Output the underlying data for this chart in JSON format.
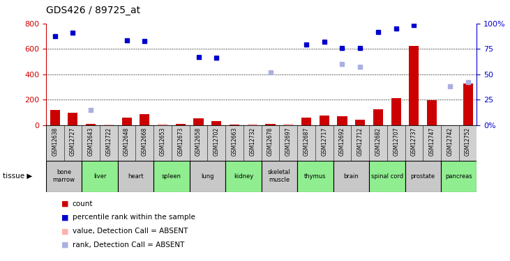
{
  "title": "GDS426 / 89725_at",
  "samples": [
    "GSM12638",
    "GSM12727",
    "GSM12643",
    "GSM12722",
    "GSM12648",
    "GSM12668",
    "GSM12653",
    "GSM12673",
    "GSM12658",
    "GSM12702",
    "GSM12663",
    "GSM12732",
    "GSM12678",
    "GSM12697",
    "GSM12687",
    "GSM12717",
    "GSM12692",
    "GSM12712",
    "GSM12682",
    "GSM12707",
    "GSM12737",
    "GSM12747",
    "GSM12742",
    "GSM12752"
  ],
  "tissues": [
    {
      "label": "bone\nmarrow",
      "start": 0,
      "end": 2,
      "color": "#c8c8c8"
    },
    {
      "label": "liver",
      "start": 2,
      "end": 4,
      "color": "#90ee90"
    },
    {
      "label": "heart",
      "start": 4,
      "end": 6,
      "color": "#c8c8c8"
    },
    {
      "label": "spleen",
      "start": 6,
      "end": 8,
      "color": "#90ee90"
    },
    {
      "label": "lung",
      "start": 8,
      "end": 10,
      "color": "#c8c8c8"
    },
    {
      "label": "kidney",
      "start": 10,
      "end": 12,
      "color": "#90ee90"
    },
    {
      "label": "skeletal\nmuscle",
      "start": 12,
      "end": 14,
      "color": "#c8c8c8"
    },
    {
      "label": "thymus",
      "start": 14,
      "end": 16,
      "color": "#90ee90"
    },
    {
      "label": "brain",
      "start": 16,
      "end": 18,
      "color": "#c8c8c8"
    },
    {
      "label": "spinal cord",
      "start": 18,
      "end": 20,
      "color": "#90ee90"
    },
    {
      "label": "prostate",
      "start": 20,
      "end": 22,
      "color": "#c8c8c8"
    },
    {
      "label": "pancreas",
      "start": 22,
      "end": 24,
      "color": "#90ee90"
    }
  ],
  "count_values": [
    120,
    100,
    10,
    8,
    60,
    85,
    10,
    12,
    55,
    35,
    5,
    10,
    10,
    12,
    60,
    75,
    70,
    45,
    125,
    215,
    625,
    195,
    0,
    330
  ],
  "count_absent": [
    false,
    false,
    false,
    true,
    false,
    false,
    true,
    false,
    false,
    false,
    false,
    true,
    false,
    true,
    false,
    false,
    false,
    false,
    false,
    false,
    false,
    false,
    false,
    false
  ],
  "rank_values": [
    700,
    725,
    null,
    null,
    670,
    660,
    null,
    null,
    535,
    530,
    null,
    null,
    null,
    null,
    635,
    655,
    605,
    605,
    735,
    760,
    790,
    null,
    null,
    null
  ],
  "absent_rank_values": [
    null,
    null,
    120,
    null,
    null,
    null,
    null,
    null,
    null,
    null,
    null,
    null,
    415,
    null,
    null,
    null,
    480,
    460,
    null,
    null,
    null,
    null,
    305,
    340
  ],
  "absent_count_values": [
    null,
    null,
    null,
    8,
    null,
    null,
    10,
    null,
    null,
    null,
    null,
    10,
    null,
    12,
    null,
    null,
    null,
    null,
    null,
    null,
    null,
    null,
    null,
    null
  ],
  "ylim_left": [
    0,
    800
  ],
  "yticks_left": [
    0,
    200,
    400,
    600,
    800
  ],
  "ytick_labels_right": [
    "0%",
    "25",
    "50",
    "75",
    "100%"
  ],
  "bg_color": "#ffffff",
  "bar_color_present": "#cc0000",
  "bar_color_absent": "#ffb0b0",
  "rank_color_present": "#0000cc",
  "rank_color_absent": "#aab0e0",
  "grid_color": "#000000",
  "axis_color_left": "#cc0000",
  "axis_color_right": "#0000cc",
  "legend_items": [
    {
      "color": "#cc0000",
      "label": "count"
    },
    {
      "color": "#0000cc",
      "label": "percentile rank within the sample"
    },
    {
      "color": "#ffb0b0",
      "label": "value, Detection Call = ABSENT"
    },
    {
      "color": "#aab0e0",
      "label": "rank, Detection Call = ABSENT"
    }
  ]
}
